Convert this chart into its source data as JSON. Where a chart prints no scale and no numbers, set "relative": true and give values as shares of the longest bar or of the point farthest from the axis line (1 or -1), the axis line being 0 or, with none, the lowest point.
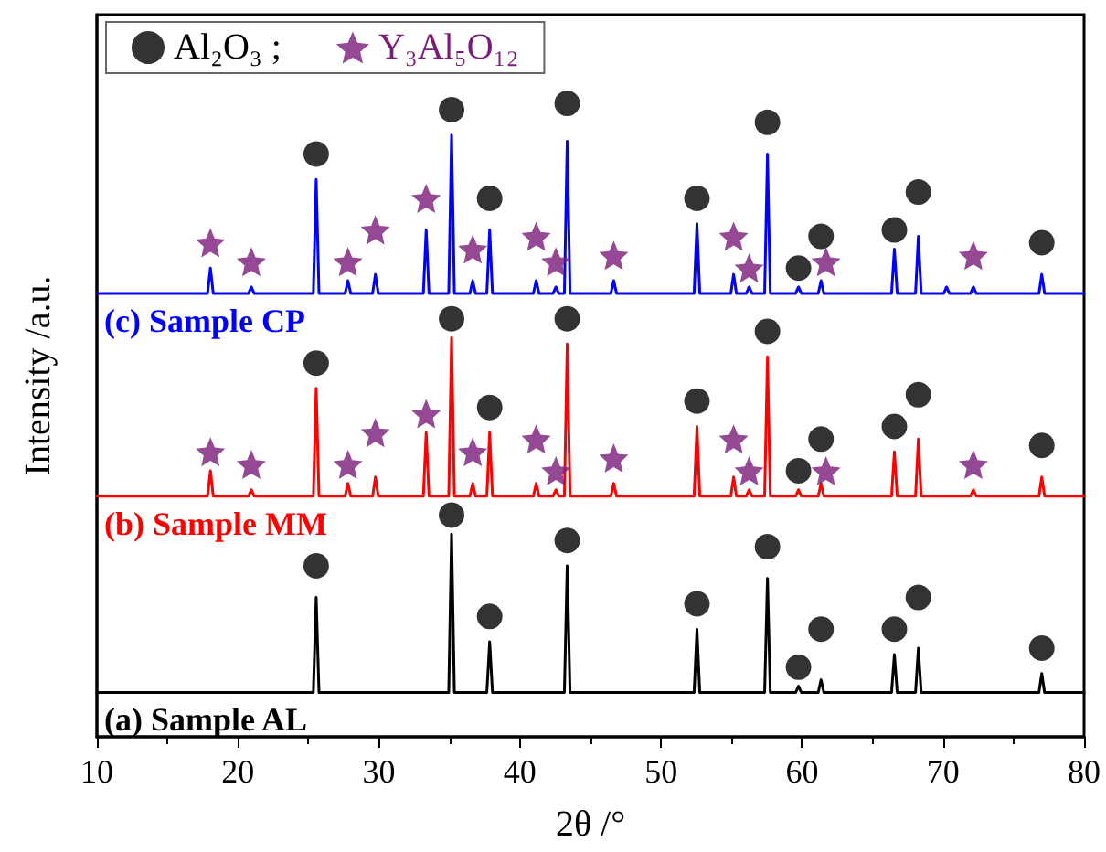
{
  "chart_data": {
    "type": "line",
    "relative": true,
    "xlabel": "2θ /°",
    "ylabel": "Intensity /a.u.",
    "xlim": [
      10,
      80
    ],
    "xticks": [
      10,
      20,
      30,
      40,
      50,
      60,
      70,
      80
    ],
    "grid": false,
    "legend": "top left",
    "marker": "none",
    "line_style": "solid",
    "series": [
      {
        "name": "(a) Sample AL",
        "color": "#000000",
        "x": [
          10,
          25.35,
          25.55,
          25.75,
          34.95,
          35.15,
          35.35,
          37.65,
          37.85,
          38.05,
          43.15,
          43.35,
          43.55,
          52.35,
          52.55,
          52.75,
          57.35,
          57.55,
          57.75,
          59.55,
          59.75,
          59.95,
          61.15,
          61.35,
          61.55,
          66.35,
          66.55,
          66.75,
          68.05,
          68.25,
          68.45,
          76.8,
          77.0,
          77.2,
          80
        ],
        "values": [
          0.07,
          0.07,
          0.22,
          0.07,
          0.07,
          0.32,
          0.07,
          0.07,
          0.15,
          0.07,
          0.07,
          0.27,
          0.07,
          0.07,
          0.17,
          0.07,
          0.07,
          0.25,
          0.07,
          0.07,
          0.08,
          0.07,
          0.07,
          0.09,
          0.07,
          0.07,
          0.13,
          0.07,
          0.07,
          0.14,
          0.07,
          0.07,
          0.1,
          0.07,
          0.07
        ]
      },
      {
        "name": "(b) Sample MM",
        "color": "#ff0000",
        "x": [
          10,
          17.85,
          18.05,
          18.25,
          20.75,
          20.95,
          21.15,
          25.35,
          25.55,
          25.75,
          27.6,
          27.8,
          28.0,
          29.55,
          29.75,
          29.95,
          33.15,
          33.35,
          33.55,
          34.95,
          35.15,
          35.35,
          36.45,
          36.65,
          36.85,
          37.65,
          37.85,
          38.05,
          40.95,
          41.15,
          41.35,
          42.35,
          42.55,
          42.75,
          43.15,
          43.35,
          43.55,
          46.45,
          46.65,
          46.85,
          52.35,
          52.55,
          52.75,
          54.95,
          55.15,
          55.35,
          56.05,
          56.25,
          56.45,
          57.35,
          57.55,
          57.75,
          59.55,
          59.75,
          59.95,
          61.15,
          61.35,
          61.55,
          66.35,
          66.55,
          66.75,
          68.05,
          68.25,
          68.45,
          71.95,
          72.15,
          72.35,
          76.8,
          77.0,
          77.2,
          80
        ],
        "values": [
          0.38,
          0.38,
          0.42,
          0.38,
          0.38,
          0.39,
          0.38,
          0.38,
          0.55,
          0.38,
          0.38,
          0.4,
          0.38,
          0.38,
          0.41,
          0.38,
          0.38,
          0.48,
          0.38,
          0.38,
          0.63,
          0.38,
          0.38,
          0.4,
          0.38,
          0.38,
          0.48,
          0.38,
          0.38,
          0.4,
          0.38,
          0.38,
          0.39,
          0.38,
          0.38,
          0.62,
          0.38,
          0.38,
          0.4,
          0.38,
          0.38,
          0.49,
          0.38,
          0.38,
          0.41,
          0.38,
          0.38,
          0.39,
          0.38,
          0.38,
          0.6,
          0.38,
          0.38,
          0.39,
          0.38,
          0.38,
          0.4,
          0.38,
          0.38,
          0.45,
          0.38,
          0.38,
          0.47,
          0.38,
          0.38,
          0.39,
          0.38,
          0.38,
          0.41,
          0.38,
          0.38
        ]
      },
      {
        "name": "(c) Sample CP",
        "color": "#0000ff",
        "x": [
          10,
          17.85,
          18.05,
          18.25,
          20.75,
          20.95,
          21.15,
          25.35,
          25.55,
          25.75,
          27.6,
          27.8,
          28.0,
          29.55,
          29.75,
          29.95,
          33.15,
          33.35,
          33.55,
          34.95,
          35.15,
          35.35,
          36.45,
          36.65,
          36.85,
          37.65,
          37.85,
          38.05,
          40.95,
          41.15,
          41.35,
          42.35,
          42.55,
          42.75,
          43.15,
          43.35,
          43.55,
          46.45,
          46.65,
          46.85,
          52.35,
          52.55,
          52.75,
          54.95,
          55.15,
          55.35,
          56.05,
          56.25,
          56.45,
          57.35,
          57.55,
          57.75,
          59.55,
          59.75,
          59.95,
          61.15,
          61.35,
          61.55,
          66.35,
          66.55,
          66.75,
          68.05,
          68.25,
          68.45,
          70.05,
          70.25,
          70.45,
          71.95,
          72.15,
          72.35,
          76.8,
          77.0,
          77.2,
          80
        ],
        "values": [
          0.7,
          0.7,
          0.74,
          0.7,
          0.7,
          0.71,
          0.7,
          0.7,
          0.88,
          0.7,
          0.7,
          0.72,
          0.7,
          0.7,
          0.73,
          0.7,
          0.7,
          0.8,
          0.7,
          0.7,
          0.95,
          0.7,
          0.7,
          0.72,
          0.7,
          0.7,
          0.8,
          0.7,
          0.7,
          0.72,
          0.7,
          0.7,
          0.71,
          0.7,
          0.7,
          0.94,
          0.7,
          0.7,
          0.72,
          0.7,
          0.7,
          0.81,
          0.7,
          0.7,
          0.73,
          0.7,
          0.7,
          0.71,
          0.7,
          0.7,
          0.92,
          0.7,
          0.7,
          0.71,
          0.7,
          0.7,
          0.72,
          0.7,
          0.7,
          0.77,
          0.7,
          0.7,
          0.79,
          0.7,
          0.7,
          0.71,
          0.7,
          0.7,
          0.71,
          0.7,
          0.7,
          0.73,
          0.7,
          0.7
        ]
      },
      {
        "type": "scatter",
        "name": "Al₂O₃ ;",
        "color": "#000000",
        "marker": "circle",
        "x": [
          25.55,
          35.15,
          37.85,
          43.35,
          52.55,
          57.55,
          59.75,
          61.35,
          66.55,
          68.25,
          77.0,
          25.55,
          35.15,
          37.85,
          43.35,
          52.55,
          57.55,
          59.75,
          61.35,
          66.55,
          68.25,
          77.0,
          25.55,
          35.15,
          37.85,
          43.35,
          52.55,
          57.55,
          59.75,
          61.35,
          66.55,
          68.25,
          77.0
        ],
        "values": [
          0.27,
          0.35,
          0.19,
          0.31,
          0.21,
          0.3,
          0.11,
          0.17,
          0.17,
          0.22,
          0.14,
          0.59,
          0.66,
          0.52,
          0.66,
          0.53,
          0.64,
          0.42,
          0.47,
          0.49,
          0.54,
          0.46,
          0.92,
          0.99,
          0.85,
          1.0,
          0.85,
          0.97,
          0.74,
          0.79,
          0.8,
          0.86,
          0.78
        ]
      },
      {
        "type": "scatter",
        "name": "Y₃Al₅O₁₂",
        "color": "#7b1c7b",
        "marker": "star",
        "x": [
          18.05,
          20.95,
          27.8,
          29.75,
          33.35,
          36.65,
          41.15,
          42.55,
          46.65,
          55.15,
          56.25,
          61.7,
          72.15,
          18.05,
          20.95,
          27.8,
          29.75,
          33.35,
          36.65,
          41.15,
          42.55,
          46.65,
          55.15,
          56.25,
          61.7,
          72.15
        ],
        "values": [
          0.45,
          0.43,
          0.43,
          0.48,
          0.51,
          0.45,
          0.47,
          0.42,
          0.44,
          0.47,
          0.42,
          0.42,
          0.43,
          0.78,
          0.75,
          0.75,
          0.8,
          0.85,
          0.77,
          0.79,
          0.75,
          0.76,
          0.79,
          0.74,
          0.75,
          0.76
        ]
      }
    ]
  }
}
